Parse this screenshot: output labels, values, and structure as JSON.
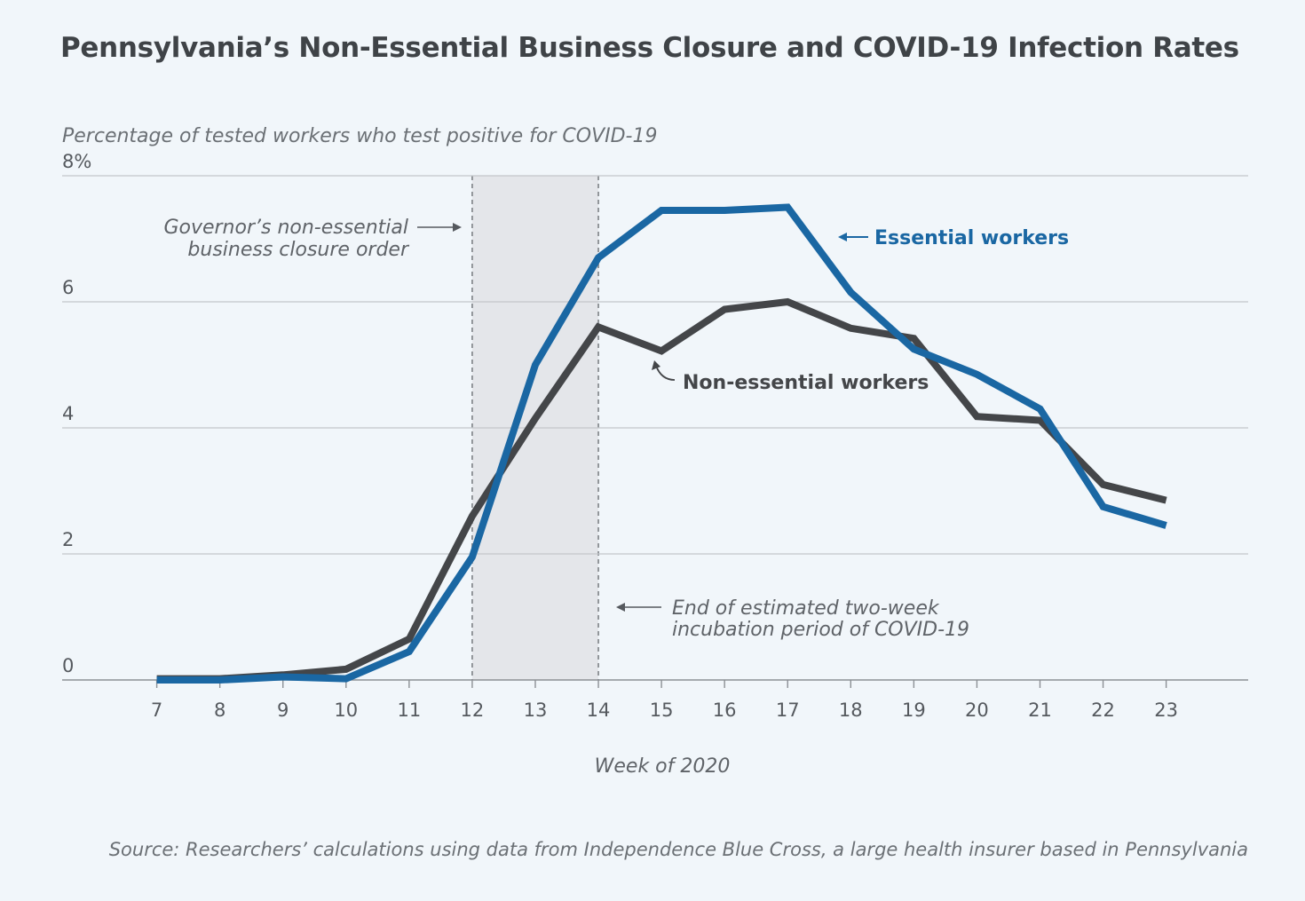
{
  "chart_data": {
    "type": "line",
    "title": "Pennsylvania’s Non-Essential Business Closure and COVID-19 Infection Rates",
    "ylabel": "Percentage of tested workers who test positive for COVID-19",
    "xlabel": "Week of 2020",
    "ylim": [
      0,
      8
    ],
    "xlim": [
      5.5,
      24.3
    ],
    "y_ticks": [
      "8%",
      "6",
      "4",
      "2",
      "0"
    ],
    "x": [
      7,
      8,
      9,
      10,
      11,
      12,
      13,
      14,
      15,
      16,
      17,
      18,
      19,
      20,
      21,
      22,
      23
    ],
    "grid": true,
    "series": [
      {
        "name": "Essential workers",
        "color": "#1a67a3",
        "values": [
          0.0,
          0.0,
          0.05,
          0.02,
          0.45,
          1.95,
          5.0,
          6.7,
          7.45,
          7.45,
          7.5,
          6.15,
          5.25,
          4.85,
          4.3,
          2.75,
          2.45
        ]
      },
      {
        "name": "Non-essential workers",
        "color": "#444649",
        "values": [
          0.02,
          0.02,
          0.08,
          0.17,
          0.65,
          2.6,
          4.15,
          5.6,
          5.22,
          5.88,
          6.0,
          5.58,
          5.42,
          4.18,
          4.12,
          3.1,
          2.85
        ]
      }
    ],
    "shaded_region": {
      "x_start": 12,
      "x_end": 14
    },
    "annotations": [
      {
        "id": "closure",
        "lines": [
          "Governor’s non-essential",
          "business closure order"
        ]
      },
      {
        "id": "incubation",
        "lines": [
          "End of estimated two-week",
          "incubation period of COVID-19"
        ]
      }
    ],
    "source": "Source: Researchers’ calculations using data from Independence Blue Cross, a large health insurer based in Pennsylvania"
  },
  "colors": {
    "background": "#f1f6fa",
    "grid": "#c3c7cb",
    "shade": "#e4e6ea",
    "essential": "#1a67a3",
    "nonessential": "#444649"
  }
}
